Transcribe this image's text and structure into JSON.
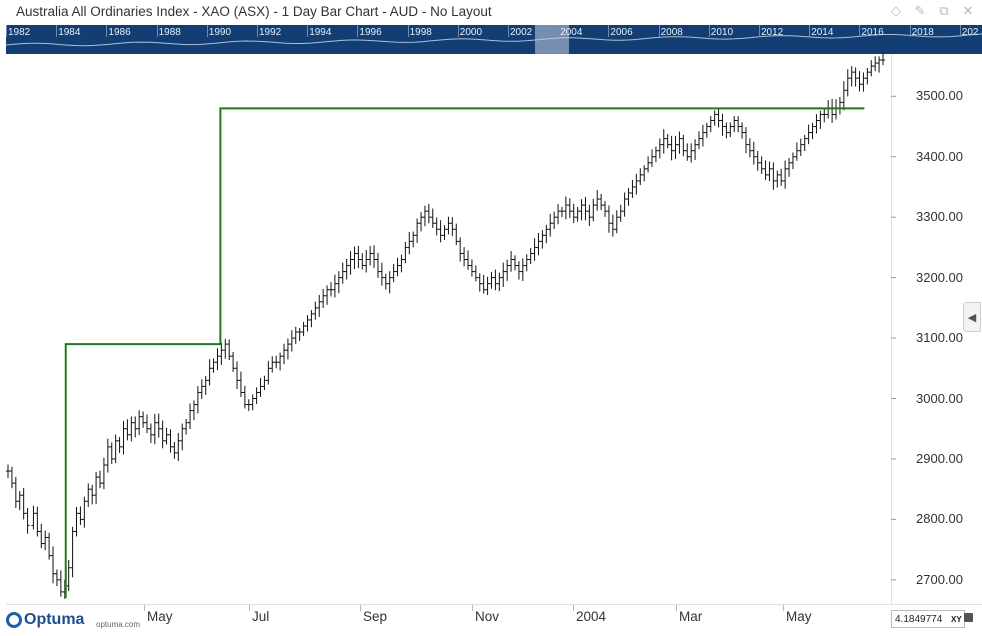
{
  "window": {
    "title": "Australia All Ordinaries Index - XAO (ASX) - 1 Day Bar Chart - AUD - No Layout",
    "icons": [
      "diamond-icon",
      "pin-icon",
      "restore-icon",
      "close-icon"
    ]
  },
  "navigator": {
    "years": [
      "1982",
      "1984",
      "1986",
      "1988",
      "1990",
      "1992",
      "1994",
      "1996",
      "1998",
      "2000",
      "2002",
      "2004",
      "2006",
      "2008",
      "2010",
      "2012",
      "2014",
      "2016",
      "2018",
      "202"
    ]
  },
  "chart_data": {
    "type": "bar",
    "title": "Australia All Ordinaries Index - XAO (ASX) - 1 Day Bar Chart - AUD - No Layout",
    "xlabel": "",
    "ylabel": "",
    "x_ticks": [
      "May",
      "Jul",
      "Sep",
      "Nov",
      "2004",
      "Mar",
      "May"
    ],
    "y_ticks": [
      "2700.00",
      "2800.00",
      "2900.00",
      "3000.00",
      "3100.00",
      "3200.00",
      "3300.00",
      "3400.00",
      "3500.00"
    ],
    "ylim": [
      2660,
      3570
    ],
    "grid": false,
    "series": [
      {
        "style": "ohlc-bars",
        "color": "#111111",
        "points": [
          [
            0,
            2880
          ],
          [
            4,
            2860
          ],
          [
            8,
            2830
          ],
          [
            12,
            2840
          ],
          [
            16,
            2810
          ],
          [
            20,
            2790
          ],
          [
            26,
            2810
          ],
          [
            30,
            2780
          ],
          [
            34,
            2760
          ],
          [
            38,
            2770
          ],
          [
            42,
            2740
          ],
          [
            46,
            2710
          ],
          [
            50,
            2700
          ],
          [
            54,
            2680
          ],
          [
            58,
            2690
          ],
          [
            62,
            2720
          ],
          [
            66,
            2780
          ],
          [
            70,
            2810
          ],
          [
            74,
            2800
          ],
          [
            78,
            2830
          ],
          [
            82,
            2850
          ],
          [
            86,
            2840
          ],
          [
            90,
            2870
          ],
          [
            94,
            2860
          ],
          [
            98,
            2890
          ],
          [
            102,
            2920
          ],
          [
            106,
            2900
          ],
          [
            110,
            2930
          ],
          [
            114,
            2920
          ],
          [
            118,
            2950
          ],
          [
            122,
            2940
          ],
          [
            126,
            2960
          ],
          [
            130,
            2950
          ],
          [
            134,
            2970
          ],
          [
            138,
            2960
          ],
          [
            142,
            2950
          ],
          [
            146,
            2940
          ],
          [
            150,
            2960
          ],
          [
            154,
            2950
          ],
          [
            158,
            2930
          ],
          [
            162,
            2940
          ],
          [
            166,
            2920
          ],
          [
            170,
            2910
          ],
          [
            174,
            2930
          ],
          [
            178,
            2950
          ],
          [
            182,
            2960
          ],
          [
            186,
            2980
          ],
          [
            190,
            2990
          ],
          [
            194,
            3010
          ],
          [
            198,
            3020
          ],
          [
            202,
            3030
          ],
          [
            206,
            3050
          ],
          [
            210,
            3060
          ],
          [
            214,
            3070
          ],
          [
            218,
            3080
          ],
          [
            222,
            3090
          ],
          [
            226,
            3070
          ],
          [
            230,
            3050
          ],
          [
            234,
            3030
          ],
          [
            238,
            3010
          ],
          [
            242,
            2990
          ],
          [
            246,
            2990
          ],
          [
            250,
            3000
          ],
          [
            254,
            3010
          ],
          [
            258,
            3020
          ],
          [
            262,
            3030
          ],
          [
            266,
            3050
          ],
          [
            270,
            3060
          ],
          [
            274,
            3060
          ],
          [
            278,
            3070
          ],
          [
            282,
            3080
          ],
          [
            286,
            3090
          ],
          [
            290,
            3100
          ],
          [
            294,
            3110
          ],
          [
            298,
            3110
          ],
          [
            302,
            3120
          ],
          [
            306,
            3130
          ],
          [
            310,
            3140
          ],
          [
            314,
            3150
          ],
          [
            318,
            3160
          ],
          [
            322,
            3170
          ],
          [
            326,
            3180
          ],
          [
            330,
            3180
          ],
          [
            334,
            3190
          ],
          [
            338,
            3200
          ],
          [
            342,
            3210
          ],
          [
            346,
            3220
          ],
          [
            350,
            3230
          ],
          [
            354,
            3240
          ],
          [
            358,
            3230
          ],
          [
            362,
            3220
          ],
          [
            366,
            3230
          ],
          [
            370,
            3240
          ],
          [
            374,
            3230
          ],
          [
            378,
            3210
          ],
          [
            382,
            3200
          ],
          [
            386,
            3190
          ],
          [
            390,
            3200
          ],
          [
            394,
            3210
          ],
          [
            398,
            3220
          ],
          [
            402,
            3230
          ],
          [
            406,
            3250
          ],
          [
            410,
            3260
          ],
          [
            414,
            3270
          ],
          [
            418,
            3290
          ],
          [
            422,
            3300
          ],
          [
            426,
            3310
          ],
          [
            430,
            3300
          ],
          [
            434,
            3290
          ],
          [
            438,
            3280
          ],
          [
            442,
            3270
          ],
          [
            446,
            3280
          ],
          [
            450,
            3290
          ],
          [
            454,
            3280
          ],
          [
            458,
            3260
          ],
          [
            462,
            3240
          ],
          [
            466,
            3230
          ],
          [
            470,
            3220
          ],
          [
            474,
            3210
          ],
          [
            478,
            3200
          ],
          [
            482,
            3190
          ],
          [
            486,
            3180
          ],
          [
            490,
            3190
          ],
          [
            494,
            3200
          ],
          [
            498,
            3190
          ],
          [
            502,
            3200
          ],
          [
            506,
            3210
          ],
          [
            510,
            3220
          ],
          [
            514,
            3230
          ],
          [
            518,
            3220
          ],
          [
            522,
            3210
          ],
          [
            526,
            3220
          ],
          [
            530,
            3230
          ],
          [
            534,
            3240
          ],
          [
            538,
            3250
          ],
          [
            542,
            3260
          ],
          [
            546,
            3270
          ],
          [
            550,
            3280
          ],
          [
            554,
            3290
          ],
          [
            558,
            3300
          ],
          [
            562,
            3310
          ],
          [
            566,
            3310
          ],
          [
            570,
            3320
          ],
          [
            574,
            3310
          ],
          [
            578,
            3300
          ],
          [
            582,
            3310
          ],
          [
            586,
            3320
          ],
          [
            590,
            3310
          ],
          [
            594,
            3300
          ],
          [
            598,
            3320
          ],
          [
            602,
            3330
          ],
          [
            606,
            3320
          ],
          [
            610,
            3310
          ],
          [
            614,
            3290
          ],
          [
            618,
            3280
          ],
          [
            622,
            3300
          ],
          [
            626,
            3310
          ],
          [
            630,
            3330
          ],
          [
            634,
            3340
          ],
          [
            638,
            3350
          ],
          [
            642,
            3360
          ],
          [
            646,
            3370
          ],
          [
            650,
            3380
          ],
          [
            654,
            3390
          ],
          [
            658,
            3400
          ],
          [
            662,
            3410
          ],
          [
            666,
            3420
          ],
          [
            670,
            3430
          ],
          [
            674,
            3420
          ],
          [
            678,
            3410
          ],
          [
            682,
            3420
          ],
          [
            686,
            3430
          ],
          [
            690,
            3410
          ],
          [
            694,
            3400
          ],
          [
            698,
            3410
          ],
          [
            702,
            3420
          ],
          [
            706,
            3430
          ],
          [
            710,
            3440
          ],
          [
            714,
            3450
          ],
          [
            718,
            3460
          ],
          [
            722,
            3470
          ],
          [
            726,
            3460
          ],
          [
            730,
            3450
          ],
          [
            734,
            3440
          ],
          [
            738,
            3450
          ],
          [
            742,
            3460
          ],
          [
            746,
            3450
          ],
          [
            750,
            3440
          ],
          [
            754,
            3420
          ],
          [
            758,
            3410
          ],
          [
            762,
            3400
          ],
          [
            766,
            3390
          ],
          [
            770,
            3380
          ],
          [
            774,
            3370
          ],
          [
            778,
            3380
          ],
          [
            782,
            3360
          ],
          [
            786,
            3370
          ],
          [
            790,
            3360
          ],
          [
            794,
            3380
          ],
          [
            798,
            3390
          ],
          [
            802,
            3400
          ],
          [
            806,
            3410
          ],
          [
            810,
            3420
          ],
          [
            814,
            3430
          ],
          [
            818,
            3440
          ],
          [
            822,
            3450
          ],
          [
            826,
            3460
          ],
          [
            830,
            3470
          ],
          [
            834,
            3470
          ],
          [
            838,
            3480
          ],
          [
            842,
            3470
          ],
          [
            846,
            3480
          ],
          [
            850,
            3490
          ],
          [
            854,
            3510
          ],
          [
            858,
            3530
          ],
          [
            862,
            3540
          ],
          [
            866,
            3530
          ],
          [
            870,
            3520
          ],
          [
            874,
            3530
          ],
          [
            878,
            3540
          ],
          [
            882,
            3550
          ],
          [
            886,
            3555
          ],
          [
            890,
            3560
          ],
          [
            894,
            3560
          ]
        ]
      },
      {
        "name": "",
        "style": "step-line",
        "color": "#1e7a1e",
        "steps": [
          {
            "from_index": 0,
            "level": 2670
          },
          {
            "from_index": 1,
            "level": 3090
          },
          {
            "from_index": 2,
            "level": 3480
          }
        ],
        "x_markers": [
          59,
          217,
          875
        ]
      }
    ]
  },
  "axis_readout": {
    "value": "4.1849774",
    "mode": "XY"
  },
  "branding": {
    "name": "Optuma",
    "url": "optuma.com"
  }
}
